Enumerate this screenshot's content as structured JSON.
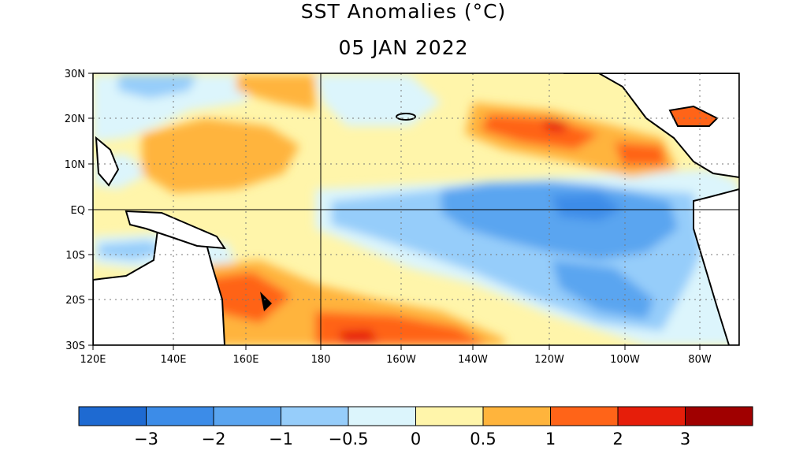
{
  "title": "SST Anomalies (°C)",
  "date": "05 JAN 2022",
  "map": {
    "lon_range": [
      "120E",
      "70W"
    ],
    "lat_range": [
      "30S",
      "30N"
    ],
    "lat_labels": [
      "30N",
      "20N",
      "10N",
      "EQ",
      "10S",
      "20S",
      "30S"
    ],
    "lon_labels": [
      "120E",
      "140E",
      "160E",
      "180",
      "160W",
      "140W",
      "120W",
      "100W",
      "80W"
    ]
  },
  "colorbar": {
    "colors": [
      "#1e6ad2",
      "#3c8ce8",
      "#5aa5f0",
      "#96cdfa",
      "#dcf5fc",
      "#fff5aa",
      "#ffb43c",
      "#ff6418",
      "#e61e0a",
      "#a00000"
    ],
    "labels": [
      "−3",
      "−2",
      "−1",
      "−0.5",
      "0",
      "0.5",
      "1",
      "2",
      "3"
    ]
  }
}
